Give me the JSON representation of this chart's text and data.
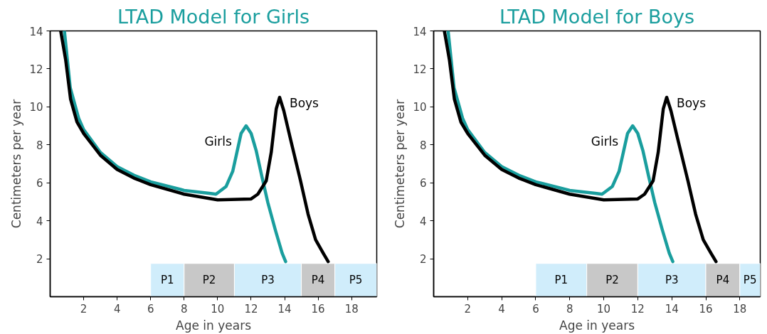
{
  "chart_data": [
    {
      "type": "line",
      "title": "LTAD Model for Girls",
      "xlabel": "Age in years",
      "ylabel": "Centimeters per year",
      "xlim": [
        0,
        19.5
      ],
      "ylim": [
        0,
        14
      ],
      "xticks": [
        2,
        4,
        6,
        8,
        10,
        12,
        14,
        16,
        18
      ],
      "yticks": [
        2,
        4,
        6,
        8,
        10,
        12,
        14
      ],
      "grid": false,
      "marker": "none",
      "line_style": "solid",
      "series": [
        {
          "name": "Girls",
          "color": "#1a9e9e",
          "x": [
            0.85,
            1.2,
            1.7,
            2,
            3,
            4,
            5,
            6,
            8,
            9.5,
            9.9,
            10.5,
            10.9,
            11.15,
            11.4,
            11.7,
            12,
            12.3,
            12.65,
            13,
            13.45,
            13.85,
            14.06
          ],
          "values": [
            14,
            11,
            9.4,
            8.8,
            7.6,
            6.85,
            6.4,
            6.05,
            5.6,
            5.45,
            5.4,
            5.8,
            6.6,
            7.6,
            8.6,
            9.0,
            8.6,
            7.7,
            6.3,
            4.95,
            3.5,
            2.3,
            1.85
          ]
        },
        {
          "name": "Boys",
          "color": "#000000",
          "x": [
            0.63,
            0.93,
            1.22,
            1.6,
            2,
            3,
            4,
            5,
            6,
            8,
            10,
            12,
            12.4,
            12.9,
            13.2,
            13.5,
            13.7,
            13.95,
            14.35,
            14.95,
            15.4,
            15.85,
            16.3,
            16.6
          ],
          "values": [
            14,
            12.45,
            10.4,
            9.2,
            8.6,
            7.45,
            6.7,
            6.25,
            5.9,
            5.4,
            5.1,
            5.15,
            5.4,
            6.1,
            7.6,
            9.9,
            10.5,
            9.8,
            8.3,
            6.1,
            4.35,
            3.0,
            2.3,
            1.85
          ]
        }
      ],
      "bands": [
        {
          "axis": "x",
          "from": 6,
          "to": 8,
          "label": "P1",
          "color": "#d0edfb"
        },
        {
          "axis": "x",
          "from": 8,
          "to": 11,
          "label": "P2",
          "color": "#c8c8c8"
        },
        {
          "axis": "x",
          "from": 11,
          "to": 15,
          "label": "P3",
          "color": "#d0edfb"
        },
        {
          "axis": "x",
          "from": 15,
          "to": 17,
          "label": "P4",
          "color": "#c8c8c8"
        },
        {
          "axis": "x",
          "from": 17,
          "to": 19.5,
          "label": "P5",
          "color": "#d0edfb"
        }
      ]
    },
    {
      "type": "line",
      "title": "LTAD Model for Boys",
      "xlabel": "Age in years",
      "ylabel": "Centimeters per year",
      "xlim": [
        0,
        19.2
      ],
      "ylim": [
        0,
        14
      ],
      "xticks": [
        2,
        4,
        6,
        8,
        10,
        12,
        14,
        16,
        18
      ],
      "yticks": [
        2,
        4,
        6,
        8,
        10,
        12,
        14
      ],
      "grid": false,
      "marker": "none",
      "line_style": "solid",
      "series": [
        {
          "name": "Girls",
          "color": "#1a9e9e",
          "x": [
            0.85,
            1.2,
            1.7,
            2,
            3,
            4,
            5,
            6,
            8,
            9.5,
            9.9,
            10.5,
            10.9,
            11.15,
            11.4,
            11.7,
            12,
            12.3,
            12.65,
            13,
            13.45,
            13.85,
            14.06
          ],
          "values": [
            14,
            11,
            9.4,
            8.8,
            7.6,
            6.85,
            6.4,
            6.05,
            5.6,
            5.45,
            5.4,
            5.8,
            6.6,
            7.6,
            8.6,
            9.0,
            8.6,
            7.7,
            6.3,
            4.95,
            3.5,
            2.3,
            1.85
          ]
        },
        {
          "name": "Boys",
          "color": "#000000",
          "x": [
            0.63,
            0.93,
            1.22,
            1.6,
            2,
            3,
            4,
            5,
            6,
            8,
            10,
            12,
            12.4,
            12.9,
            13.2,
            13.5,
            13.7,
            13.95,
            14.35,
            14.95,
            15.4,
            15.85,
            16.3,
            16.6
          ],
          "values": [
            14,
            12.45,
            10.4,
            9.2,
            8.6,
            7.45,
            6.7,
            6.25,
            5.9,
            5.4,
            5.1,
            5.15,
            5.4,
            6.1,
            7.6,
            9.9,
            10.5,
            9.8,
            8.3,
            6.1,
            4.35,
            3.0,
            2.3,
            1.85
          ]
        }
      ],
      "bands": [
        {
          "axis": "x",
          "from": 6,
          "to": 9,
          "label": "P1",
          "color": "#d0edfb"
        },
        {
          "axis": "x",
          "from": 9,
          "to": 12,
          "label": "P2",
          "color": "#c8c8c8"
        },
        {
          "axis": "x",
          "from": 12,
          "to": 16,
          "label": "P3",
          "color": "#d0edfb"
        },
        {
          "axis": "x",
          "from": 16,
          "to": 18,
          "label": "P4",
          "color": "#c8c8c8"
        },
        {
          "axis": "x",
          "from": 18,
          "to": 19.2,
          "label": "P5",
          "color": "#d0edfb"
        }
      ]
    }
  ]
}
